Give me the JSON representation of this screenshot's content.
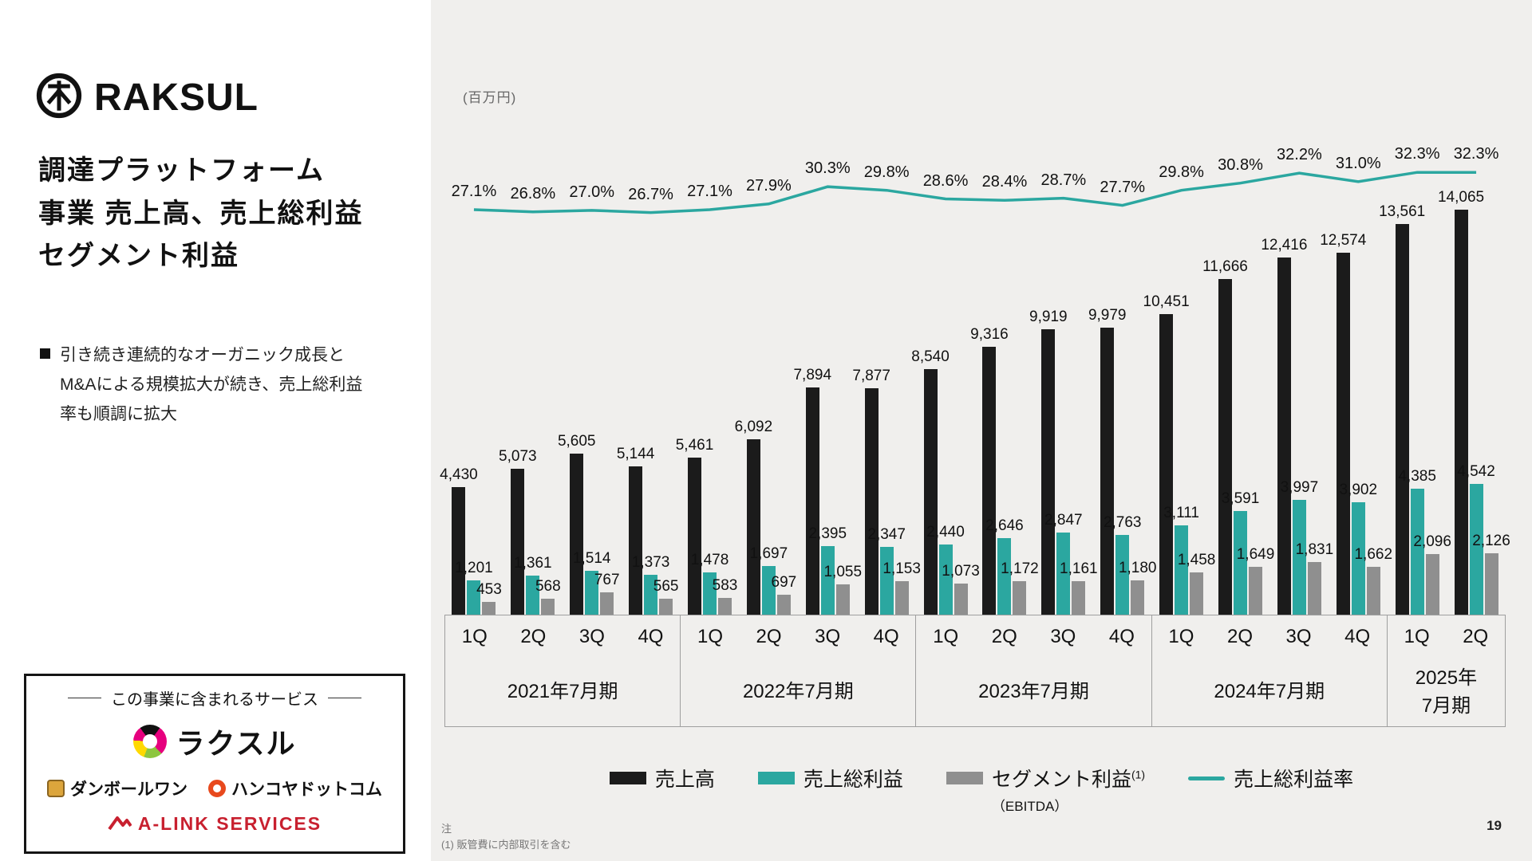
{
  "sidebar": {
    "brand": "RAKSUL",
    "title_lines": [
      "調達プラットフォーム",
      "事業 売上高、売上総利益",
      "セグメント利益"
    ],
    "bullet_text": "引き続き連続的なオーガニック成長とM&Aによる規模拡大が続き、売上総利益率も順調に拡大",
    "services_box": {
      "title": "この事業に含まれるサービス",
      "service_1": "ラクスル",
      "service_2": "ダンボールワン",
      "service_3": "ハンコヤドットコム",
      "service_4": "A-LINK SERVICES"
    }
  },
  "chart": {
    "unit_label": "(百万円)",
    "legend": {
      "revenue": "売上高",
      "gross_profit": "売上総利益",
      "segment_profit": "セグメント利益",
      "segment_sup": "(1)",
      "segment_sub": "（EBITDA）",
      "margin": "売上総利益率"
    }
  },
  "chart_data": {
    "type": "bar",
    "title": "調達プラットフォーム事業 売上高、売上総利益 セグメント利益",
    "unit": "百万円",
    "grid": false,
    "legend_position": "bottom",
    "ylim": [
      0,
      14065
    ],
    "categories": [
      "1Q",
      "2Q",
      "3Q",
      "4Q",
      "1Q",
      "2Q",
      "3Q",
      "4Q",
      "1Q",
      "2Q",
      "3Q",
      "4Q",
      "1Q",
      "2Q",
      "3Q",
      "4Q",
      "1Q",
      "2Q"
    ],
    "year_groups": [
      {
        "label": "2021年7月期",
        "quarters": 4
      },
      {
        "label": "2022年7月期",
        "quarters": 4
      },
      {
        "label": "2023年7月期",
        "quarters": 4
      },
      {
        "label": "2024年7月期",
        "quarters": 4
      },
      {
        "label": "2025年7月期",
        "lines": [
          "2025年",
          "7月期"
        ],
        "quarters": 2
      }
    ],
    "series": [
      {
        "name": "売上高",
        "color": "#1b1b1b",
        "values": [
          4430,
          5073,
          5605,
          5144,
          5461,
          6092,
          7894,
          7877,
          8540,
          9316,
          9919,
          9979,
          10451,
          11666,
          12416,
          12574,
          13561,
          14065
        ]
      },
      {
        "name": "売上総利益",
        "color": "#2ba7a0",
        "values": [
          1201,
          1361,
          1514,
          1373,
          1478,
          1697,
          2395,
          2347,
          2440,
          2646,
          2847,
          2763,
          3111,
          3591,
          3997,
          3902,
          4385,
          4542
        ]
      },
      {
        "name": "セグメント利益 (EBITDA)",
        "color": "#8f8f8f",
        "values": [
          453,
          568,
          767,
          565,
          583,
          697,
          1055,
          1153,
          1073,
          1172,
          1161,
          1180,
          1458,
          1649,
          1831,
          1662,
          2096,
          2126
        ]
      }
    ],
    "line_series": {
      "name": "売上総利益率",
      "color": "#2ba7a0",
      "unit": "%",
      "values": [
        27.1,
        26.8,
        27.0,
        26.7,
        27.1,
        27.9,
        30.3,
        29.8,
        28.6,
        28.4,
        28.7,
        27.7,
        29.8,
        30.8,
        32.2,
        31.0,
        32.3,
        32.3
      ]
    }
  },
  "footer": {
    "note_label": "注",
    "note_1": "(1) 販管費に内部取引を含む",
    "page_number": "19"
  }
}
